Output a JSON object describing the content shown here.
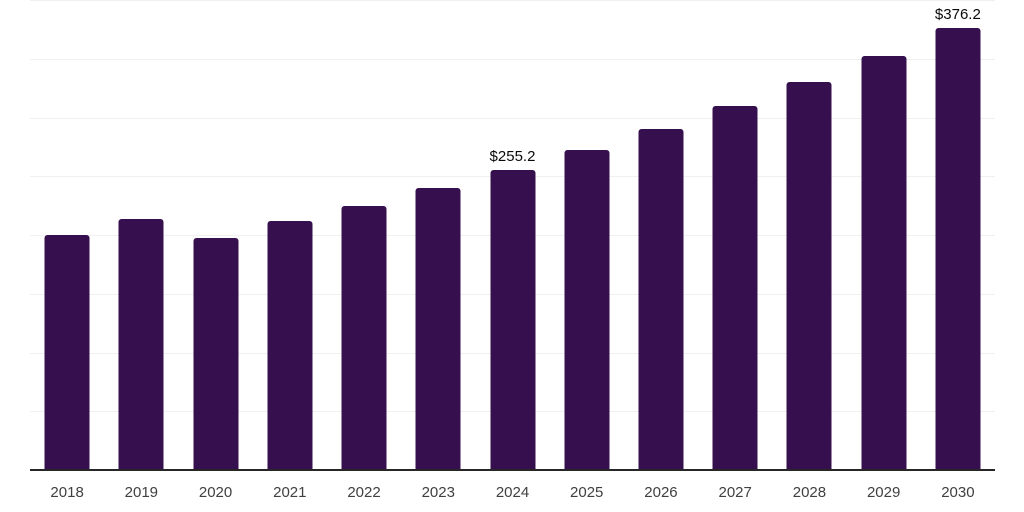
{
  "chart_data": {
    "type": "bar",
    "title": "",
    "xlabel": "",
    "ylabel": "",
    "categories": [
      "2018",
      "2019",
      "2020",
      "2021",
      "2022",
      "2023",
      "2024",
      "2025",
      "2026",
      "2027",
      "2028",
      "2029",
      "2030"
    ],
    "values": [
      200.0,
      213.6,
      197.9,
      212.0,
      224.7,
      240.3,
      255.2,
      272.2,
      290.4,
      309.7,
      330.3,
      352.5,
      376.2
    ],
    "data_labels": [
      {
        "index": 6,
        "text": "$255.2"
      },
      {
        "index": 12,
        "text": "$376.2"
      }
    ],
    "ylim": [
      0,
      400
    ],
    "grid_step": 50,
    "grid": "horizontal",
    "legend": "none",
    "colors": {
      "bar": "#36104E",
      "gridline": "#F0F0F0",
      "axis_line": "#262626",
      "tick_label": "#404040",
      "data_label": "#0A0A0A",
      "background": "#FFFFFF"
    }
  }
}
